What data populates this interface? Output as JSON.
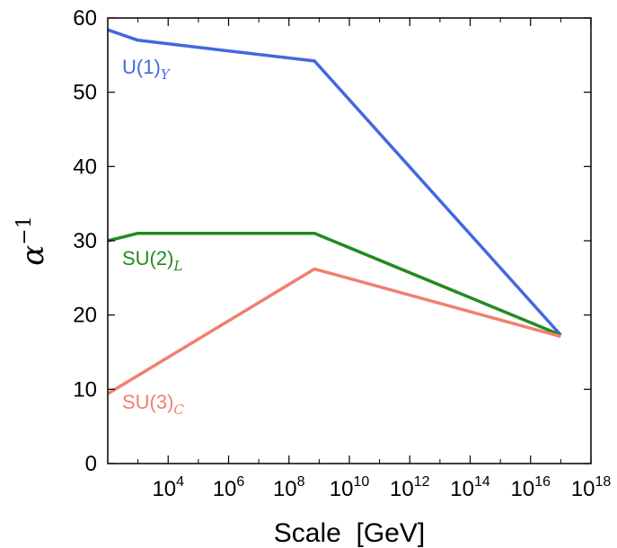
{
  "chart_data": {
    "type": "line",
    "title": "",
    "xlabel": "Scale  [GeV]",
    "ylabel": "α",
    "ylabel_superscript": "−1",
    "xscale": "log",
    "xlim": [
      100,
      1e+18
    ],
    "ylim": [
      0,
      60
    ],
    "yticks": [
      0,
      10,
      20,
      30,
      40,
      50,
      60
    ],
    "xticks": [
      {
        "value": 10000.0,
        "base": "10",
        "exp": "4"
      },
      {
        "value": 1000000.0,
        "base": "10",
        "exp": "6"
      },
      {
        "value": 100000000.0,
        "base": "10",
        "exp": "8"
      },
      {
        "value": 10000000000.0,
        "base": "10",
        "exp": "10"
      },
      {
        "value": 1000000000000.0,
        "base": "10",
        "exp": "12"
      },
      {
        "value": 100000000000000.0,
        "base": "10",
        "exp": "14"
      },
      {
        "value": 1e+16,
        "base": "10",
        "exp": "16"
      },
      {
        "value": 1e+18,
        "base": "10",
        "exp": "18"
      }
    ],
    "grid": false,
    "series": [
      {
        "name": "U(1)",
        "subscript": "Y",
        "color": "#4169e1",
        "x": [
          100,
          1000,
          700000000.0,
          1e+17
        ],
        "y": [
          58.4,
          57.0,
          54.2,
          17.3
        ]
      },
      {
        "name": "SU(2)",
        "subscript": "L",
        "color": "#228b22",
        "x": [
          100,
          1000,
          700000000.0,
          1e+17
        ],
        "y": [
          30.0,
          31.0,
          31.0,
          17.3
        ]
      },
      {
        "name": "SU(3)",
        "subscript": "C",
        "color": "#f08070",
        "x": [
          100,
          700000000.0,
          1e+17
        ],
        "y": [
          9.4,
          26.2,
          17.1
        ]
      }
    ]
  }
}
